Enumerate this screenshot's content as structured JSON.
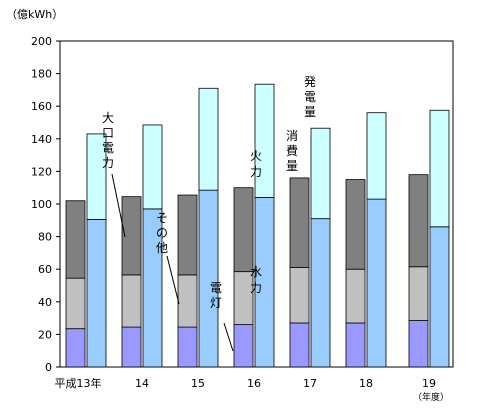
{
  "chart_data": {
    "type": "bar",
    "ylabel": "（億kWh）",
    "xunit": "（年度）",
    "ylim": [
      0,
      200
    ],
    "yticks": [
      0,
      20,
      40,
      60,
      80,
      100,
      120,
      140,
      160,
      180,
      200
    ],
    "categories": [
      "平成13年",
      "14",
      "15",
      "16",
      "17",
      "18",
      "19"
    ],
    "consumption_stack": {
      "label": "消費量",
      "series": [
        {
          "name": "電灯",
          "values": [
            23.5,
            24.5,
            24.5,
            26,
            27,
            27,
            28.5
          ],
          "color": "#9999ff"
        },
        {
          "name": "その他",
          "values": [
            31,
            32,
            32,
            32.5,
            34,
            33,
            33
          ],
          "color": "#c0c0c0"
        },
        {
          "name": "大口電力",
          "values": [
            47.5,
            48,
            49,
            51.5,
            55,
            55,
            56.5
          ],
          "color": "#808080"
        }
      ]
    },
    "generation_stack": {
      "label": "発電量",
      "series": [
        {
          "name": "水力",
          "values": [
            90.5,
            97,
            108.5,
            104,
            91,
            103,
            86
          ],
          "color": "#99ccff"
        },
        {
          "name": "火力",
          "values": [
            52.5,
            51.5,
            62.5,
            69.5,
            55.5,
            53,
            71.5
          ],
          "color": "#ccffff"
        }
      ]
    }
  }
}
